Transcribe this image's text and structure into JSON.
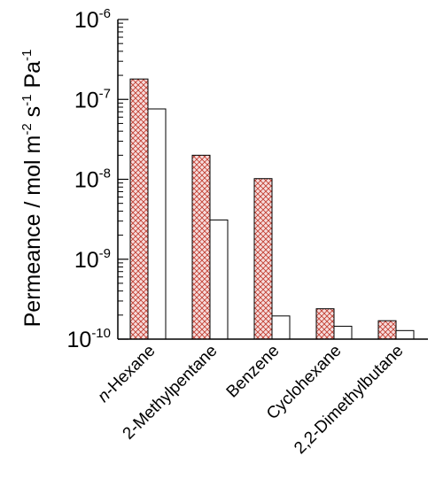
{
  "chart_data": {
    "type": "bar",
    "yscale": "log",
    "ylim": [
      1e-10,
      1e-06
    ],
    "ylabel": {
      "main": "Permeance / mol m",
      "exp1": "-2",
      "mid": " s",
      "exp2": "-1",
      "tail": " Pa",
      "exp3": "-1"
    },
    "y_ticks": [
      {
        "base": "10",
        "exp": "-10",
        "value": 1e-10
      },
      {
        "base": "10",
        "exp": "-9",
        "value": 1e-09
      },
      {
        "base": "10",
        "exp": "-8",
        "value": 1e-08
      },
      {
        "base": "10",
        "exp": "-7",
        "value": 1e-07
      },
      {
        "base": "10",
        "exp": "-6",
        "value": 1e-06
      }
    ],
    "categories": [
      {
        "prefix": "n",
        "rest": "-Hexane"
      },
      {
        "prefix": "",
        "rest": "2-Methylpentane"
      },
      {
        "prefix": "",
        "rest": "Benzene"
      },
      {
        "prefix": "",
        "rest": "Cyclohexane"
      },
      {
        "prefix": "",
        "rest": "2,2-Dimethylbutane"
      }
    ],
    "series": [
      {
        "values": [
          1.8e-07,
          2e-08,
          1.02e-08,
          2.4e-10,
          1.7e-10
        ],
        "fill": "#f6dcdc",
        "hatch": "#c0392b",
        "pattern": "crosshatch"
      },
      {
        "values": [
          7.6e-08,
          3.1e-09,
          1.95e-10,
          1.45e-10,
          1.28e-10
        ],
        "fill": "#ffffff",
        "pattern": "none"
      }
    ],
    "grid": false
  }
}
